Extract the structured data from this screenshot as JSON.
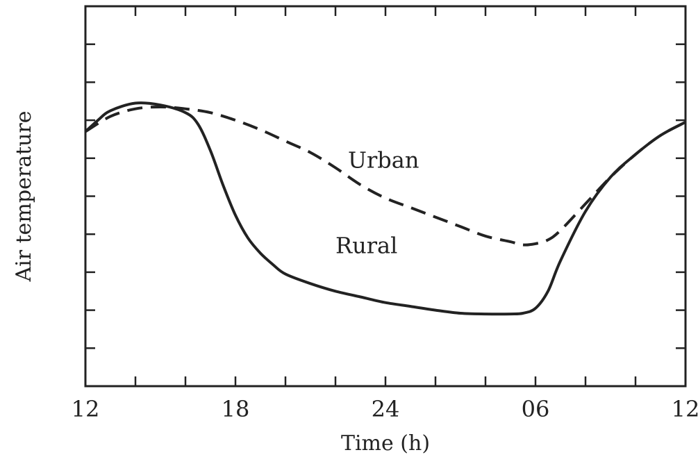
{
  "chart_data": {
    "type": "line",
    "xlabel": "Time (h)",
    "ylabel": "Air temperature",
    "x_ticks": [
      "12",
      "18",
      "24",
      "06",
      "12"
    ],
    "x_tick_hours": [
      12,
      18,
      24,
      30,
      36
    ],
    "xlim": [
      12,
      36
    ],
    "ylim": [
      0,
      10
    ],
    "y_tick_values": [
      1,
      2,
      3,
      4,
      5,
      6,
      7,
      8,
      9
    ],
    "y_tick_labels": false,
    "grid": false,
    "series": [
      {
        "name": "Urban",
        "style": "dashed",
        "x": [
          12,
          13,
          14,
          15,
          16,
          17,
          18,
          19,
          20,
          21,
          22,
          23,
          24,
          25,
          26,
          27,
          28,
          29,
          29.5,
          30,
          30.5,
          31,
          32,
          33,
          34,
          35,
          36
        ],
        "y": [
          6.7,
          7.1,
          7.3,
          7.35,
          7.3,
          7.2,
          7.0,
          6.75,
          6.45,
          6.15,
          5.75,
          5.3,
          4.95,
          4.7,
          4.45,
          4.2,
          3.95,
          3.8,
          3.72,
          3.75,
          3.85,
          4.1,
          4.8,
          5.5,
          6.1,
          6.6,
          6.95
        ]
      },
      {
        "name": "Rural",
        "style": "solid",
        "x": [
          12,
          12.5,
          13,
          14,
          15,
          16,
          16.5,
          17,
          17.5,
          18,
          18.5,
          19,
          19.5,
          20,
          21,
          22,
          23,
          24,
          25,
          26,
          27,
          28,
          29,
          29.5,
          30,
          30.5,
          31,
          32,
          33,
          34,
          35,
          36
        ],
        "y": [
          6.7,
          7.0,
          7.25,
          7.45,
          7.4,
          7.2,
          6.9,
          6.2,
          5.3,
          4.5,
          3.9,
          3.5,
          3.2,
          2.95,
          2.7,
          2.5,
          2.35,
          2.2,
          2.1,
          2.0,
          1.92,
          1.9,
          1.9,
          1.92,
          2.05,
          2.5,
          3.3,
          4.6,
          5.5,
          6.1,
          6.6,
          6.95
        ]
      }
    ],
    "annotations": [
      {
        "text": "Urban",
        "x": 22.5,
        "y": 5.75
      },
      {
        "text": "Rural",
        "x": 22.0,
        "y": 3.5
      }
    ]
  }
}
